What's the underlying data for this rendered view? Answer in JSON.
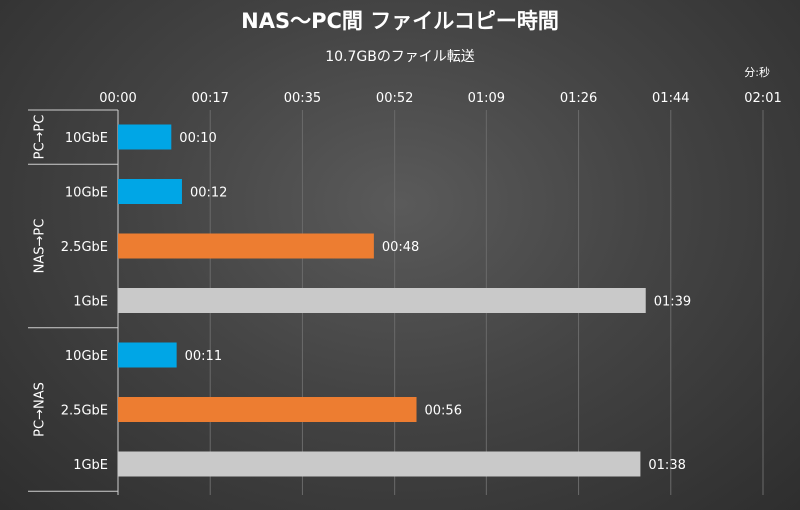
{
  "chart_data": {
    "type": "bar",
    "orientation": "horizontal",
    "title": "NAS～PC間 ファイルコピー時間",
    "subtitle": "10.7GBのファイル転送",
    "unit_label": "分:秒",
    "x_axis": {
      "min_seconds": 0,
      "max_seconds": 121,
      "ticks": [
        {
          "value": 0,
          "label": "00:00"
        },
        {
          "value": 17.3,
          "label": "00:17"
        },
        {
          "value": 34.6,
          "label": "00:35"
        },
        {
          "value": 51.9,
          "label": "00:52"
        },
        {
          "value": 69.1,
          "label": "01:09"
        },
        {
          "value": 86.4,
          "label": "01:26"
        },
        {
          "value": 103.7,
          "label": "01:44"
        },
        {
          "value": 121,
          "label": "02:01"
        }
      ],
      "grid": true
    },
    "groups": [
      {
        "name": "PC→PC",
        "bars": [
          {
            "category": "10GbE",
            "value_seconds": 10,
            "label": "00:10",
            "color": "#00a6e6"
          }
        ]
      },
      {
        "name": "NAS→PC",
        "bars": [
          {
            "category": "10GbE",
            "value_seconds": 12,
            "label": "00:12",
            "color": "#00a6e6"
          },
          {
            "category": "2.5GbE",
            "value_seconds": 48,
            "label": "00:48",
            "color": "#ed7d31"
          },
          {
            "category": "1GbE",
            "value_seconds": 99,
            "label": "01:39",
            "color": "#c9c9c9"
          }
        ]
      },
      {
        "name": "PC→NAS",
        "bars": [
          {
            "category": "10GbE",
            "value_seconds": 11,
            "label": "00:11",
            "color": "#00a6e6"
          },
          {
            "category": "2.5GbE",
            "value_seconds": 56,
            "label": "00:56",
            "color": "#ed7d31"
          },
          {
            "category": "1GbE",
            "value_seconds": 98,
            "label": "01:38",
            "color": "#c9c9c9"
          }
        ]
      }
    ]
  }
}
